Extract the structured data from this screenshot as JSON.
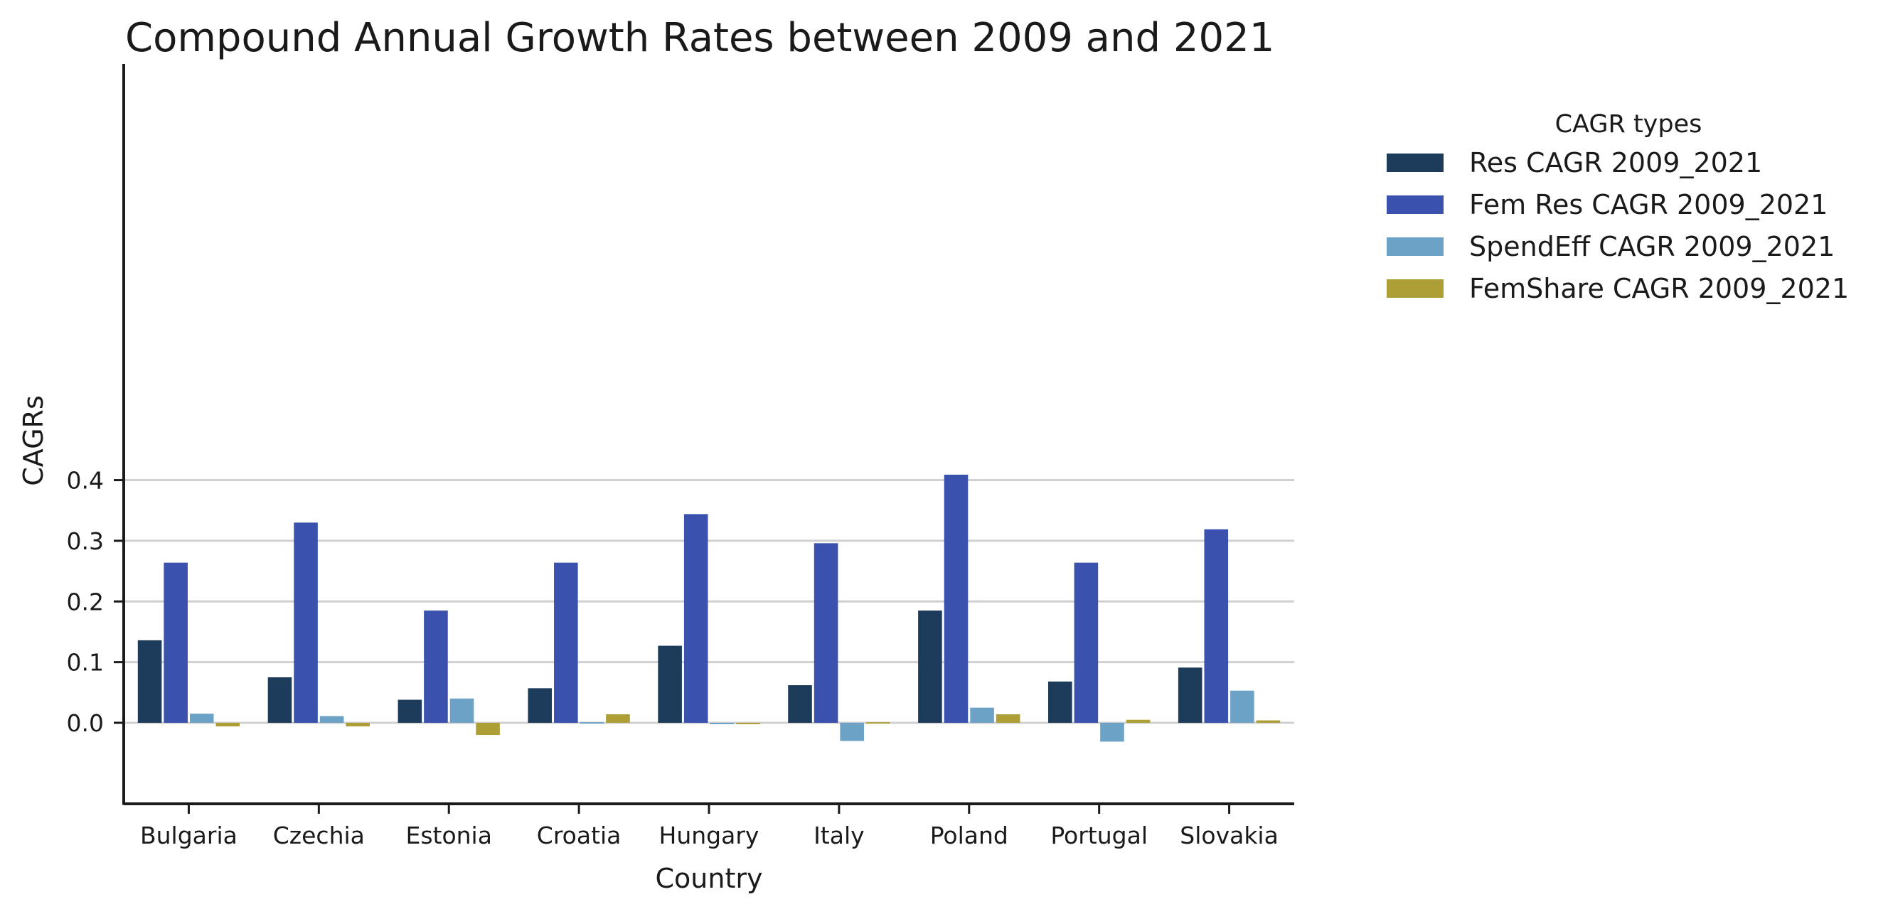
{
  "chart_data": {
    "type": "bar",
    "title": "Compound Annual Growth Rates between 2009 and 2021",
    "xlabel": "Country",
    "ylabel": "CAGRs",
    "categories": [
      "Bulgaria",
      "Czechia",
      "Estonia",
      "Croatia",
      "Hungary",
      "Italy",
      "Poland",
      "Portugal",
      "Slovakia"
    ],
    "ylim": [
      -0.053,
      0.432
    ],
    "yticks": [
      0.0,
      0.1,
      0.2,
      0.3,
      0.4
    ],
    "ytick_labels": [
      "0.0",
      "0.1",
      "0.2",
      "0.3",
      "0.4"
    ],
    "grid": "horizontal",
    "legend_title": "CAGR types",
    "legend_position": "outside-right",
    "series": [
      {
        "name": "Res CAGR 2009_2021",
        "color": "#1d3b5a",
        "values": [
          0.136,
          0.075,
          0.038,
          0.057,
          0.127,
          0.062,
          0.185,
          0.068,
          0.091
        ]
      },
      {
        "name": "Fem Res CAGR 2009_2021",
        "color": "#3a52ad",
        "values": [
          0.264,
          0.33,
          0.185,
          0.264,
          0.344,
          0.296,
          0.409,
          0.264,
          0.319
        ]
      },
      {
        "name": "SpendEff CAGR 2009_2021",
        "color": "#6ba2c5",
        "values": [
          0.015,
          0.011,
          0.04,
          0.001,
          0.0,
          -0.03,
          0.025,
          -0.031,
          0.053
        ]
      },
      {
        "name": "FemShare CAGR 2009_2021",
        "color": "#ad9f36",
        "values": [
          -0.006,
          -0.006,
          -0.02,
          0.014,
          0.0,
          0.001,
          0.014,
          0.005,
          0.004
        ]
      }
    ]
  }
}
